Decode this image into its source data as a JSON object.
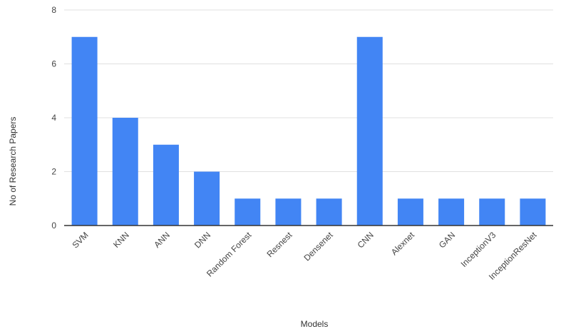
{
  "chart_data": {
    "type": "bar",
    "categories": [
      "SVM",
      "KNN",
      "ANN",
      "DNN",
      "Random Forest",
      "Resnest",
      "Densenet",
      "CNN",
      "Alexnet",
      "GAN",
      "InceptionV3",
      "InceptionResNet"
    ],
    "values": [
      7,
      4,
      3,
      2,
      1,
      1,
      1,
      7,
      1,
      1,
      1,
      1
    ],
    "xlabel": "Models",
    "ylabel": "No of Research Papers",
    "ylim": [
      0,
      8
    ],
    "yticks": [
      "0",
      "2",
      "4",
      "6",
      "8"
    ],
    "grid": true,
    "legend": "none",
    "bar_color": "#4285f4",
    "grid_color": "#e0e0e0",
    "axis_color": "#333333"
  }
}
